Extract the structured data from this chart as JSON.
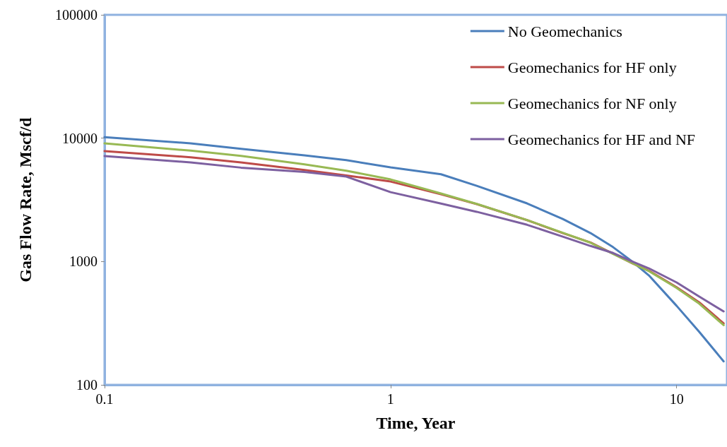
{
  "chart_data": {
    "type": "line",
    "xlabel": "Time, Year",
    "ylabel": "Gas Flow Rate, Mscf/d",
    "x": [
      0.1,
      0.2,
      0.3,
      0.5,
      0.7,
      1,
      1.5,
      2,
      3,
      4,
      5,
      6,
      7,
      8,
      10,
      12,
      14.6
    ],
    "series": [
      {
        "name": "No Geomechanics",
        "color": "#4a7ebb",
        "values": [
          10200,
          9080,
          8200,
          7250,
          6640,
          5800,
          5100,
          4110,
          2960,
          2210,
          1700,
          1306,
          1000,
          771,
          437,
          269,
          155
        ]
      },
      {
        "name": "Geomechanics for HF only",
        "color": "#be4b48",
        "values": [
          7850,
          7000,
          6360,
          5520,
          4990,
          4450,
          3510,
          2920,
          2165,
          1700,
          1428,
          1157,
          968,
          843,
          619,
          466,
          315
        ]
      },
      {
        "name": "Geomechanics for NF only",
        "color": "#98b954",
        "values": [
          9070,
          7920,
          7180,
          6130,
          5450,
          4630,
          3560,
          2930,
          2170,
          1710,
          1420,
          1150,
          970,
          835,
          610,
          455,
          305
        ]
      },
      {
        "name": "Geomechanics for HF and NF",
        "color": "#7d60a0",
        "values": [
          7160,
          6360,
          5770,
          5330,
          4880,
          3650,
          2950,
          2530,
          1985,
          1592,
          1337,
          1172,
          1000,
          880,
          676,
          519,
          394
        ]
      }
    ],
    "log": "xy",
    "xlim": [
      0.1,
      15
    ],
    "xticks": [
      0.1,
      1,
      10
    ],
    "ylim": [
      100,
      100000
    ],
    "yticks": [
      100,
      1000,
      10000,
      100000
    ],
    "grid": false,
    "legend": "top right",
    "marker": "none",
    "line_style": "solid"
  }
}
